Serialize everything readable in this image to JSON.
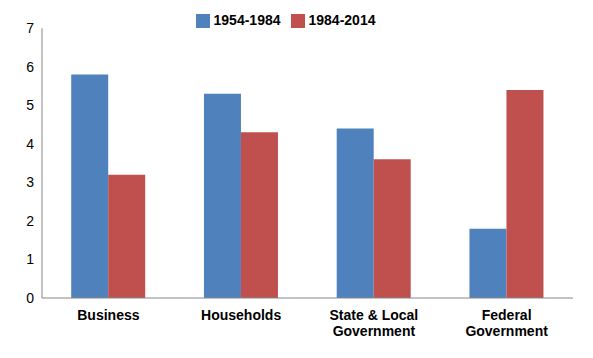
{
  "chart_data": {
    "type": "bar",
    "categories": [
      "Business",
      "Households",
      "State & Local Government",
      "Federal Government"
    ],
    "series": [
      {
        "name": "1954-1984",
        "color": "#4f81bd",
        "values": [
          5.8,
          5.3,
          4.4,
          1.8
        ]
      },
      {
        "name": "1984-2014",
        "color": "#c0504d",
        "values": [
          3.2,
          4.3,
          3.6,
          5.4
        ]
      }
    ],
    "ylim": [
      0,
      7
    ],
    "yticks": [
      0,
      1,
      2,
      3,
      4,
      5,
      6,
      7
    ],
    "grid": false,
    "legend": "top"
  }
}
